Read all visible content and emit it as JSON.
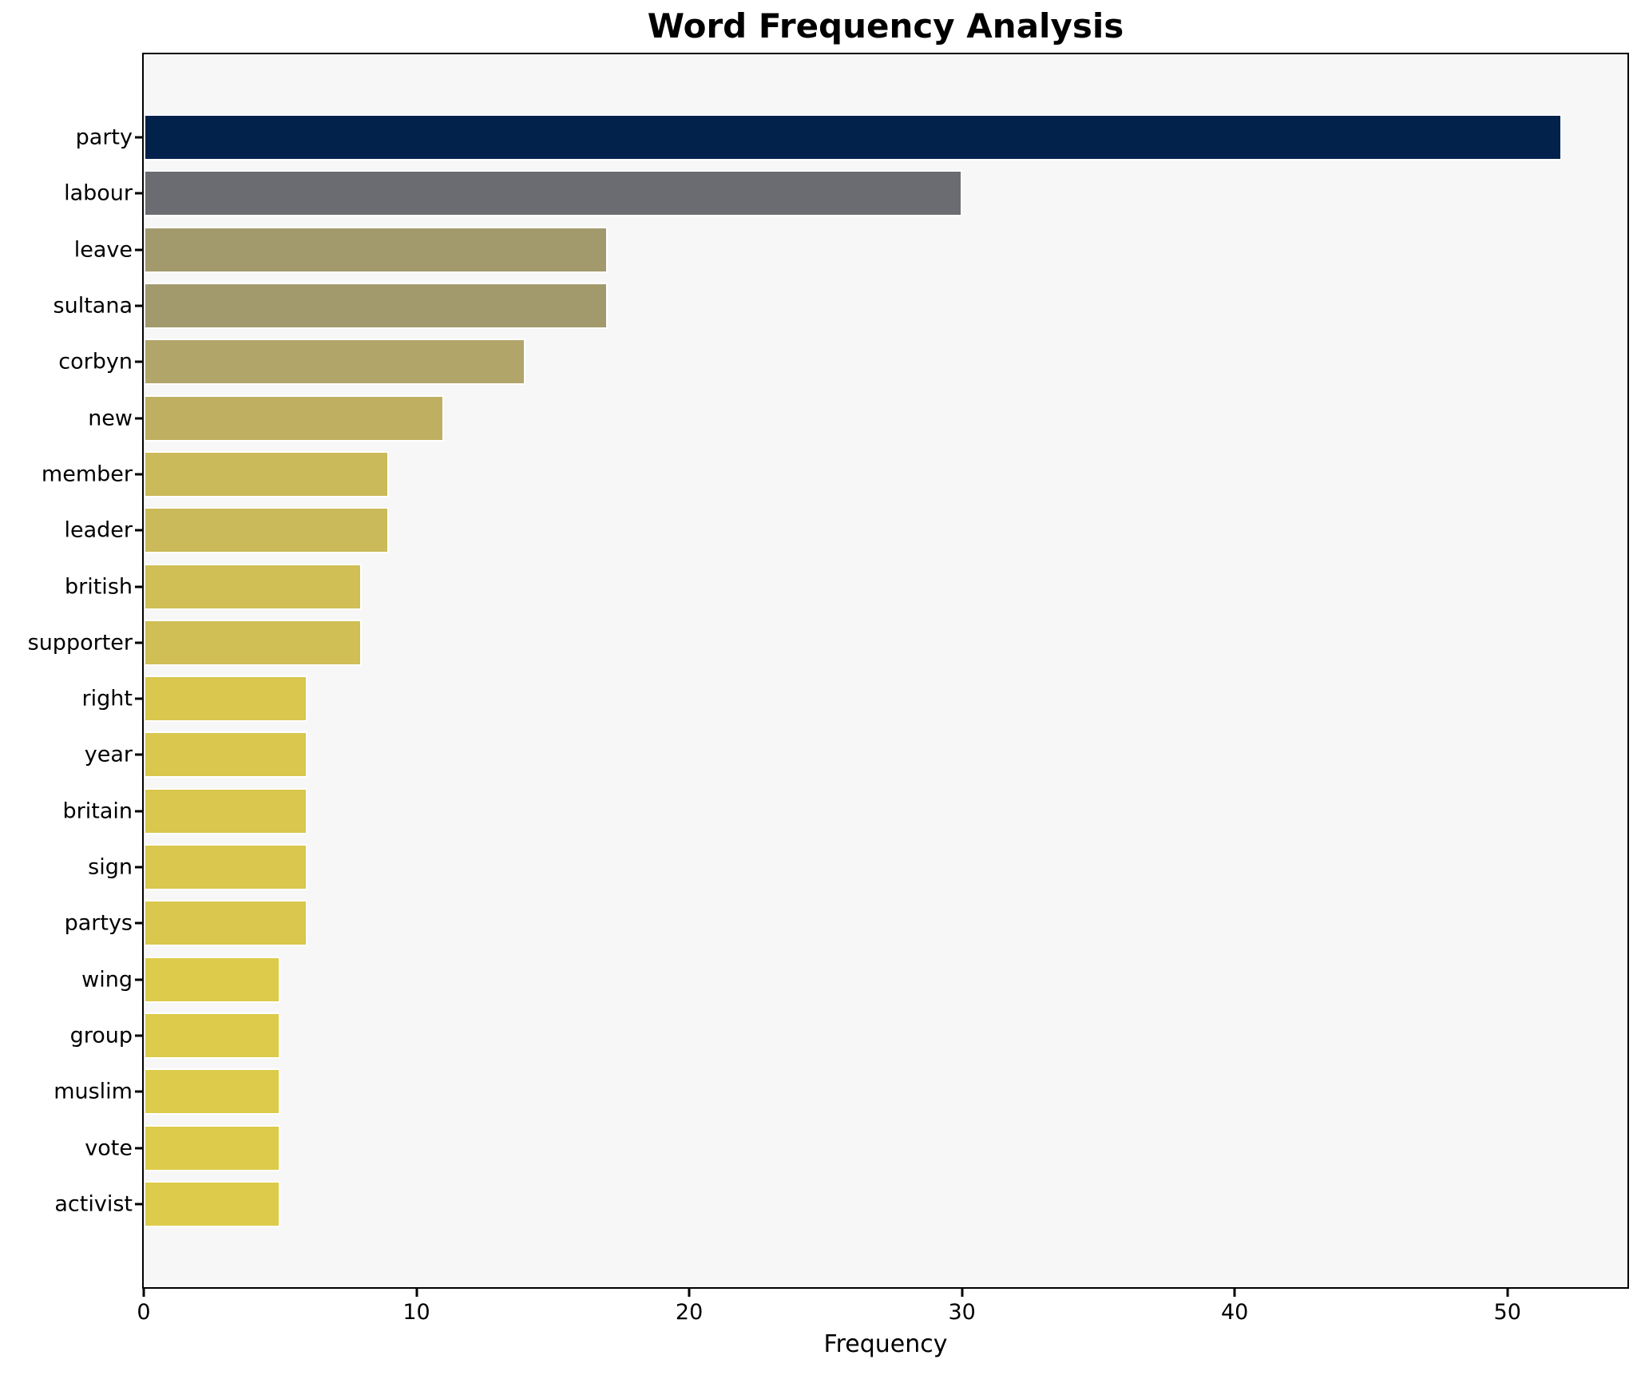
{
  "chart_data": {
    "type": "bar",
    "orientation": "horizontal",
    "title": "Word Frequency Analysis",
    "xlabel": "Frequency",
    "ylabel": "",
    "categories": [
      "party",
      "labour",
      "leave",
      "sultana",
      "corbyn",
      "new",
      "member",
      "leader",
      "british",
      "supporter",
      "right",
      "year",
      "britain",
      "sign",
      "partys",
      "wing",
      "group",
      "muslim",
      "vote",
      "activist"
    ],
    "values": [
      52,
      30,
      17,
      17,
      14,
      11,
      9,
      9,
      8,
      8,
      6,
      6,
      6,
      6,
      6,
      5,
      5,
      5,
      5,
      5
    ],
    "bar_colors": [
      "#02224c",
      "#6a6c71",
      "#a29a6d",
      "#a29a6d",
      "#b1a56a",
      "#bfb061",
      "#caba59",
      "#caba59",
      "#cfbf55",
      "#cfbf55",
      "#d9c74e",
      "#d9c74e",
      "#d9c74e",
      "#d9c74e",
      "#d9c74e",
      "#ddcb4b",
      "#ddcb4b",
      "#ddcb4b",
      "#ddcb4b",
      "#ddcb4b"
    ],
    "xlim": [
      0,
      54.4
    ],
    "xticks": [
      0,
      10,
      20,
      30,
      40,
      50
    ],
    "grid": false,
    "legend": null,
    "plot_background": "#f7f7f7",
    "figure_background": "#ffffff",
    "spine_color": "#000000",
    "bar_edge_color": "#ffffff"
  }
}
